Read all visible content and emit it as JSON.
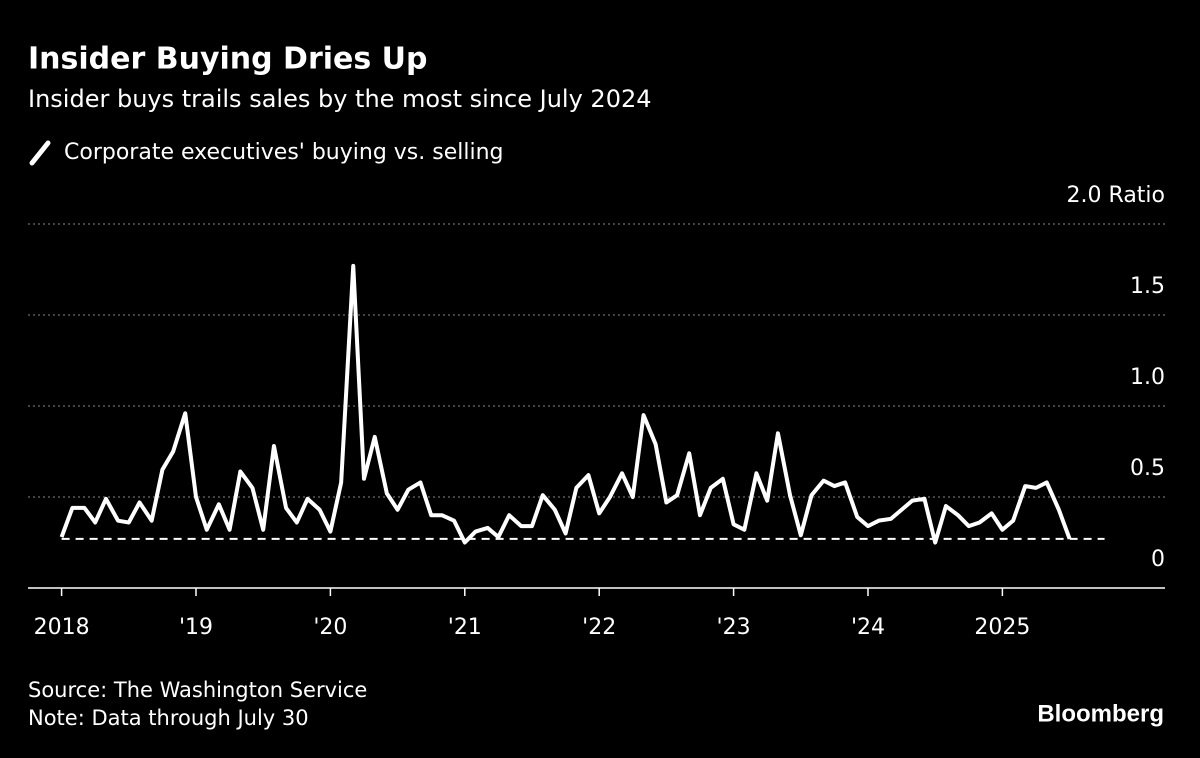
{
  "chart_data": {
    "type": "line",
    "title": "Insider Buying Dries Up",
    "subtitle": "Insider buys trails sales by the most since July 2024",
    "source": "Source: The Washington Service",
    "note": "Note: Data through July 30",
    "brand": "Bloomberg",
    "x": [
      2018,
      2018.08,
      2018.17,
      2018.25,
      2018.33,
      2018.42,
      2018.5,
      2018.58,
      2018.67,
      2018.75,
      2018.83,
      2018.92,
      2019,
      2019.08,
      2019.17,
      2019.25,
      2019.33,
      2019.42,
      2019.5,
      2019.58,
      2019.67,
      2019.75,
      2019.83,
      2019.92,
      2020,
      2020.08,
      2020.17,
      2020.25,
      2020.33,
      2020.42,
      2020.5,
      2020.58,
      2020.67,
      2020.75,
      2020.83,
      2020.92,
      2021,
      2021.08,
      2021.17,
      2021.25,
      2021.33,
      2021.42,
      2021.5,
      2021.58,
      2021.67,
      2021.75,
      2021.83,
      2021.92,
      2022,
      2022.08,
      2022.17,
      2022.25,
      2022.33,
      2022.42,
      2022.5,
      2022.58,
      2022.67,
      2022.75,
      2022.83,
      2022.92,
      2023,
      2023.08,
      2023.17,
      2023.25,
      2023.33,
      2023.42,
      2023.5,
      2023.58,
      2023.67,
      2023.75,
      2023.83,
      2023.92,
      2024,
      2024.08,
      2024.17,
      2024.25,
      2024.33,
      2024.42,
      2024.5,
      2024.58,
      2024.67,
      2024.75,
      2024.83,
      2024.92,
      2025,
      2025.08,
      2025.17,
      2025.25,
      2025.33,
      2025.42,
      2025.5
    ],
    "series": [
      {
        "name": "Corporate executives' buying vs. selling",
        "color": "#ffffff",
        "values": [
          0.28,
          0.44,
          0.44,
          0.36,
          0.49,
          0.37,
          0.36,
          0.47,
          0.37,
          0.65,
          0.75,
          0.96,
          0.5,
          0.32,
          0.46,
          0.32,
          0.64,
          0.55,
          0.32,
          0.78,
          0.44,
          0.36,
          0.49,
          0.43,
          0.31,
          0.58,
          1.77,
          0.6,
          0.83,
          0.52,
          0.43,
          0.54,
          0.58,
          0.4,
          0.4,
          0.37,
          0.25,
          0.31,
          0.33,
          0.28,
          0.4,
          0.34,
          0.34,
          0.51,
          0.43,
          0.3,
          0.55,
          0.62,
          0.41,
          0.5,
          0.63,
          0.5,
          0.95,
          0.79,
          0.47,
          0.51,
          0.74,
          0.4,
          0.55,
          0.6,
          0.35,
          0.32,
          0.63,
          0.48,
          0.85,
          0.51,
          0.29,
          0.51,
          0.59,
          0.56,
          0.58,
          0.39,
          0.34,
          0.37,
          0.38,
          0.43,
          0.48,
          0.49,
          0.25,
          0.45,
          0.4,
          0.34,
          0.36,
          0.41,
          0.32,
          0.37,
          0.56,
          0.55,
          0.58,
          0.43,
          0.27
        ]
      }
    ],
    "hline": 0.27,
    "xlim": [
      2017.75,
      2026.21
    ],
    "xticks": [
      2018,
      {
        "value": 2019,
        "label": "'19"
      },
      {
        "value": 2020,
        "label": "'20"
      },
      {
        "value": 2021,
        "label": "'21"
      },
      {
        "value": 2022,
        "label": "'22"
      },
      {
        "value": 2023,
        "label": "'23"
      },
      {
        "value": 2024,
        "label": "'24"
      },
      2025
    ],
    "ylim": [
      0,
      2
    ],
    "yticks": [
      0,
      {
        "value": 0.5,
        "label": "0.5"
      },
      {
        "value": 1,
        "label": "1.0"
      },
      {
        "value": 1.5,
        "label": "1.5"
      },
      {
        "value": 2,
        "label": "2.0 Ratio"
      }
    ],
    "grid": true
  }
}
